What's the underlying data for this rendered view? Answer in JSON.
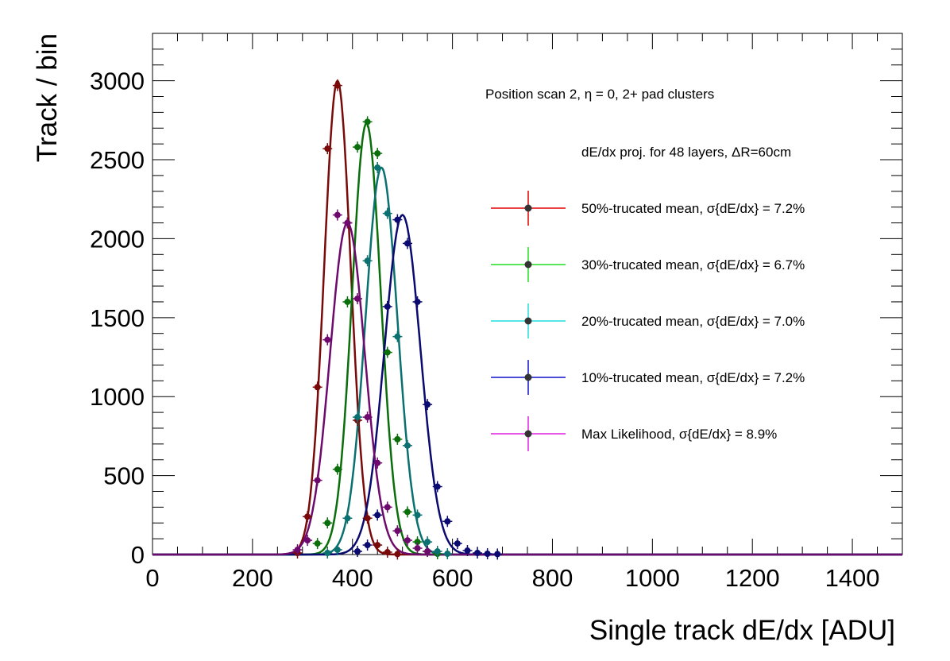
{
  "chart_data": {
    "type": "line",
    "xlabel": "Single track dE/dx [ADU]",
    "ylabel": "Track / bin",
    "xlim": [
      0,
      1500
    ],
    "ylim": [
      0,
      3300
    ],
    "xticks": [
      "0",
      "200",
      "400",
      "600",
      "800",
      "1000",
      "1200",
      "1400"
    ],
    "yticks": [
      "0",
      "500",
      "1000",
      "1500",
      "2000",
      "2500",
      "3000"
    ],
    "grid": false,
    "legend_position": "top-right",
    "annotations": [
      "Position scan 2,  η = 0, 2+ pad clusters",
      "dE/dx proj. for 48 layers,   ΔR=60cm"
    ],
    "series": [
      {
        "name": "50%-trucated mean,   σ{dE/dx} = 7.2%",
        "color": "#7a0a0a",
        "legend_color": "#e00000",
        "points": [
          [
            290,
            10
          ],
          [
            310,
            240
          ],
          [
            330,
            1060
          ],
          [
            350,
            2570
          ],
          [
            370,
            2970
          ],
          [
            390,
            2100
          ],
          [
            410,
            850
          ],
          [
            430,
            230
          ],
          [
            450,
            60
          ],
          [
            470,
            15
          ],
          [
            490,
            3
          ]
        ],
        "mean": 370,
        "sigma": 26.6,
        "peak": 3000
      },
      {
        "name": "30%-trucated mean,   σ{dE/dx} = 6.7%",
        "color": "#0a6e0a",
        "legend_color": "#22dd22",
        "points": [
          [
            330,
            70
          ],
          [
            350,
            200
          ],
          [
            370,
            540
          ],
          [
            390,
            1600
          ],
          [
            410,
            2580
          ],
          [
            430,
            2740
          ],
          [
            450,
            2540
          ],
          [
            470,
            1280
          ],
          [
            490,
            730
          ],
          [
            510,
            270
          ],
          [
            530,
            80
          ],
          [
            550,
            20
          ],
          [
            570,
            5
          ]
        ],
        "mean": 428,
        "sigma": 28.7,
        "peak": 2730
      },
      {
        "name": "20%-trucated mean,   σ{dE/dx} = 7.0%",
        "color": "#0a7070",
        "legend_color": "#22dddd",
        "points": [
          [
            350,
            10
          ],
          [
            370,
            30
          ],
          [
            390,
            230
          ],
          [
            410,
            870
          ],
          [
            430,
            1860
          ],
          [
            450,
            2450
          ],
          [
            470,
            2160
          ],
          [
            490,
            1380
          ],
          [
            510,
            690
          ],
          [
            530,
            250
          ],
          [
            550,
            80
          ],
          [
            570,
            20
          ],
          [
            590,
            5
          ]
        ],
        "mean": 458,
        "sigma": 32.1,
        "peak": 2450
      },
      {
        "name": "10%-trucated mean,   σ{dE/dx} = 7.2%",
        "color": "#0a0a70",
        "legend_color": "#1010cc",
        "points": [
          [
            410,
            20
          ],
          [
            430,
            60
          ],
          [
            450,
            250
          ],
          [
            470,
            1570
          ],
          [
            490,
            2120
          ],
          [
            510,
            1970
          ],
          [
            530,
            1600
          ],
          [
            550,
            950
          ],
          [
            570,
            430
          ],
          [
            590,
            210
          ],
          [
            610,
            70
          ],
          [
            630,
            25
          ],
          [
            650,
            10
          ],
          [
            670,
            5
          ],
          [
            690,
            3
          ]
        ],
        "mean": 500,
        "sigma": 36,
        "peak": 2150
      },
      {
        "name": "Max Likelihood,  σ{dE/dx} = 8.9%",
        "color": "#6e0a6e",
        "legend_color": "#dd22dd",
        "points": [
          [
            290,
            30
          ],
          [
            310,
            90
          ],
          [
            330,
            470
          ],
          [
            350,
            1360
          ],
          [
            370,
            2150
          ],
          [
            390,
            2100
          ],
          [
            410,
            1620
          ],
          [
            430,
            870
          ],
          [
            450,
            580
          ],
          [
            470,
            300
          ],
          [
            490,
            150
          ],
          [
            510,
            90
          ],
          [
            530,
            40
          ],
          [
            550,
            20
          ]
        ],
        "mean": 390,
        "sigma": 34.7,
        "peak": 2100
      }
    ]
  }
}
